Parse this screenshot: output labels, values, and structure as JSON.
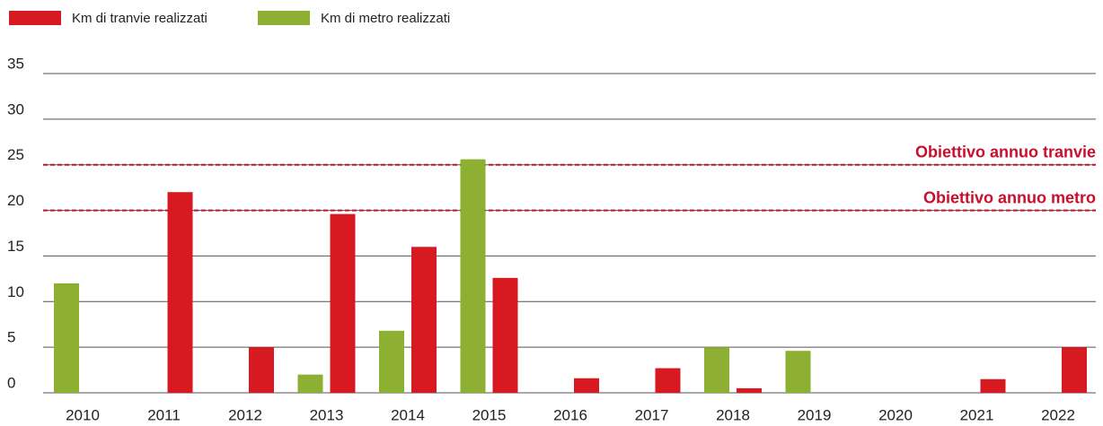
{
  "chart_data": {
    "type": "bar",
    "categories": [
      "2010",
      "2011",
      "2012",
      "2013",
      "2014",
      "2015",
      "2016",
      "2017",
      "2018",
      "2019",
      "2020",
      "2021",
      "2022"
    ],
    "series": [
      {
        "name": "Km di metro realizzati",
        "color": "#8db033",
        "values": [
          12.0,
          0,
          0,
          2.0,
          6.8,
          25.6,
          0,
          0,
          5.0,
          4.6,
          0,
          0,
          0
        ]
      },
      {
        "name": "Km di tranvie realizzati",
        "color": "#d71a21",
        "values": [
          0,
          22.0,
          5.0,
          19.6,
          16.0,
          12.6,
          1.6,
          2.7,
          0.5,
          0,
          0,
          1.5,
          5.0
        ]
      }
    ],
    "legend_order": [
      1,
      0
    ],
    "reference_lines": [
      {
        "label": "Obiettivo annuo tranvie",
        "value": 25,
        "color": "#c8102e"
      },
      {
        "label": "Obiettivo annuo metro",
        "value": 20,
        "color": "#c8102e"
      }
    ],
    "ylim": [
      0,
      35
    ],
    "yticks": [
      0,
      5,
      10,
      15,
      20,
      25,
      30,
      35
    ],
    "grid": true
  }
}
